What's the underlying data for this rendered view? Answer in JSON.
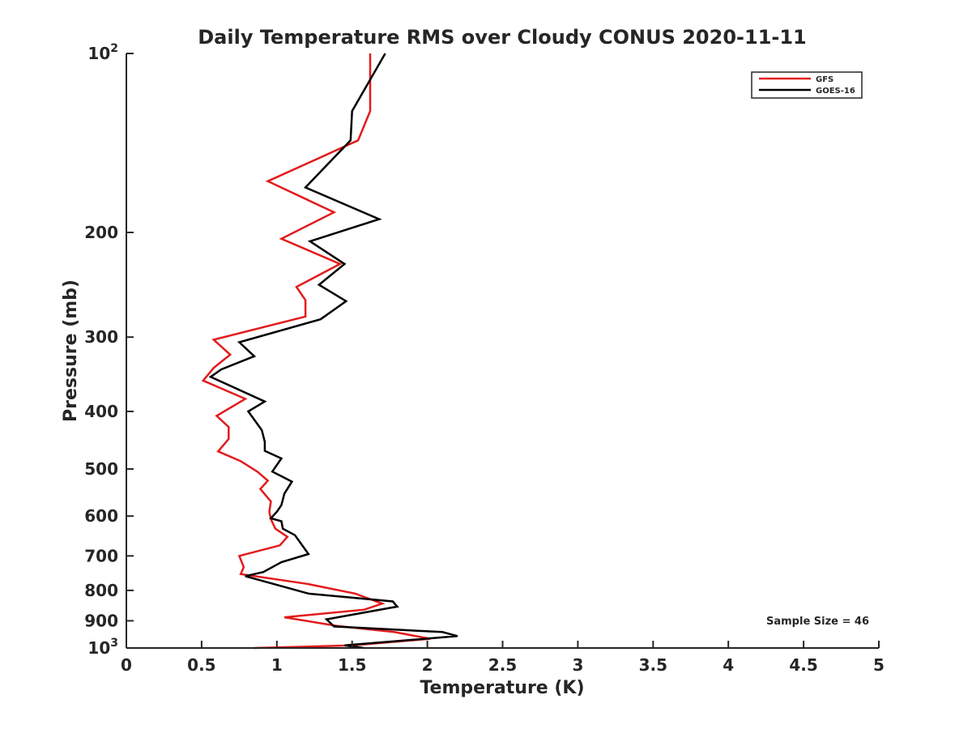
{
  "chart_data": {
    "type": "line",
    "title": "Daily Temperature RMS over Cloudy CONUS 2020-11-11",
    "xlabel": "Temperature (K)",
    "ylabel": "Pressure (mb)",
    "xlim": [
      0,
      5
    ],
    "ylim": [
      100,
      1000
    ],
    "yscale": "log",
    "y_reversed": true,
    "x_ticks": [
      "0",
      "0.5",
      "1",
      "1.5",
      "2",
      "2.5",
      "3",
      "3.5",
      "4",
      "4.5",
      "5"
    ],
    "y_ticks": [
      {
        "value": 100,
        "label": "10",
        "sup": "2"
      },
      {
        "value": 200,
        "label": "200",
        "sup": ""
      },
      {
        "value": 300,
        "label": "300",
        "sup": ""
      },
      {
        "value": 400,
        "label": "400",
        "sup": ""
      },
      {
        "value": 500,
        "label": "500",
        "sup": ""
      },
      {
        "value": 600,
        "label": "600",
        "sup": ""
      },
      {
        "value": 700,
        "label": "700",
        "sup": ""
      },
      {
        "value": 800,
        "label": "800",
        "sup": ""
      },
      {
        "value": 900,
        "label": "900",
        "sup": ""
      },
      {
        "value": 1000,
        "label": "10",
        "sup": "3"
      }
    ],
    "legend_position": "top-right",
    "grid": false,
    "annotation": "Sample Size = 46",
    "series": [
      {
        "name": "GFS",
        "color": "#e31a1c",
        "points": [
          [
            1.62,
            100
          ],
          [
            1.62,
            125
          ],
          [
            1.54,
            140
          ],
          [
            0.94,
            164
          ],
          [
            1.38,
            185
          ],
          [
            1.03,
            205
          ],
          [
            1.42,
            226
          ],
          [
            1.13,
            247
          ],
          [
            1.19,
            260
          ],
          [
            1.19,
            277
          ],
          [
            0.58,
            303
          ],
          [
            0.69,
            321
          ],
          [
            0.58,
            338
          ],
          [
            0.51,
            355
          ],
          [
            0.79,
            381
          ],
          [
            0.6,
            407
          ],
          [
            0.68,
            425
          ],
          [
            0.68,
            445
          ],
          [
            0.61,
            467
          ],
          [
            0.76,
            485
          ],
          [
            0.87,
            505
          ],
          [
            0.94,
            523
          ],
          [
            0.89,
            540
          ],
          [
            0.96,
            567
          ],
          [
            0.95,
            590
          ],
          [
            0.96,
            607
          ],
          [
            0.99,
            630
          ],
          [
            1.07,
            650
          ],
          [
            1.02,
            672
          ],
          [
            0.75,
            700
          ],
          [
            0.78,
            731
          ],
          [
            0.76,
            751
          ],
          [
            1.2,
            780
          ],
          [
            1.52,
            810
          ],
          [
            1.7,
            842
          ],
          [
            1.58,
            862
          ],
          [
            1.05,
            888
          ],
          [
            1.4,
            918
          ],
          [
            1.78,
            940
          ],
          [
            2.02,
            965
          ],
          [
            1.5,
            990
          ],
          [
            0.85,
            1000
          ]
        ]
      },
      {
        "name": "GOES-16",
        "color": "#000000",
        "points": [
          [
            1.72,
            100
          ],
          [
            1.5,
            125
          ],
          [
            1.49,
            140
          ],
          [
            1.19,
            168
          ],
          [
            1.68,
            190
          ],
          [
            1.22,
            207
          ],
          [
            1.45,
            226
          ],
          [
            1.28,
            245
          ],
          [
            1.46,
            261
          ],
          [
            1.29,
            280
          ],
          [
            0.75,
            306
          ],
          [
            0.85,
            323
          ],
          [
            0.63,
            340
          ],
          [
            0.56,
            350
          ],
          [
            0.92,
            385
          ],
          [
            0.81,
            400
          ],
          [
            0.9,
            430
          ],
          [
            0.92,
            450
          ],
          [
            0.92,
            466
          ],
          [
            1.03,
            480
          ],
          [
            0.97,
            505
          ],
          [
            1.1,
            525
          ],
          [
            1.05,
            550
          ],
          [
            1.03,
            575
          ],
          [
            1.0,
            590
          ],
          [
            0.96,
            605
          ],
          [
            1.03,
            612
          ],
          [
            1.04,
            630
          ],
          [
            1.12,
            646
          ],
          [
            1.21,
            695
          ],
          [
            1.03,
            717
          ],
          [
            0.91,
            745
          ],
          [
            0.79,
            757
          ],
          [
            1.21,
            810
          ],
          [
            1.77,
            835
          ],
          [
            1.8,
            852
          ],
          [
            1.33,
            895
          ],
          [
            1.38,
            920
          ],
          [
            2.1,
            940
          ],
          [
            2.2,
            955
          ],
          [
            1.45,
            990
          ],
          [
            1.58,
            1000
          ]
        ]
      }
    ]
  }
}
